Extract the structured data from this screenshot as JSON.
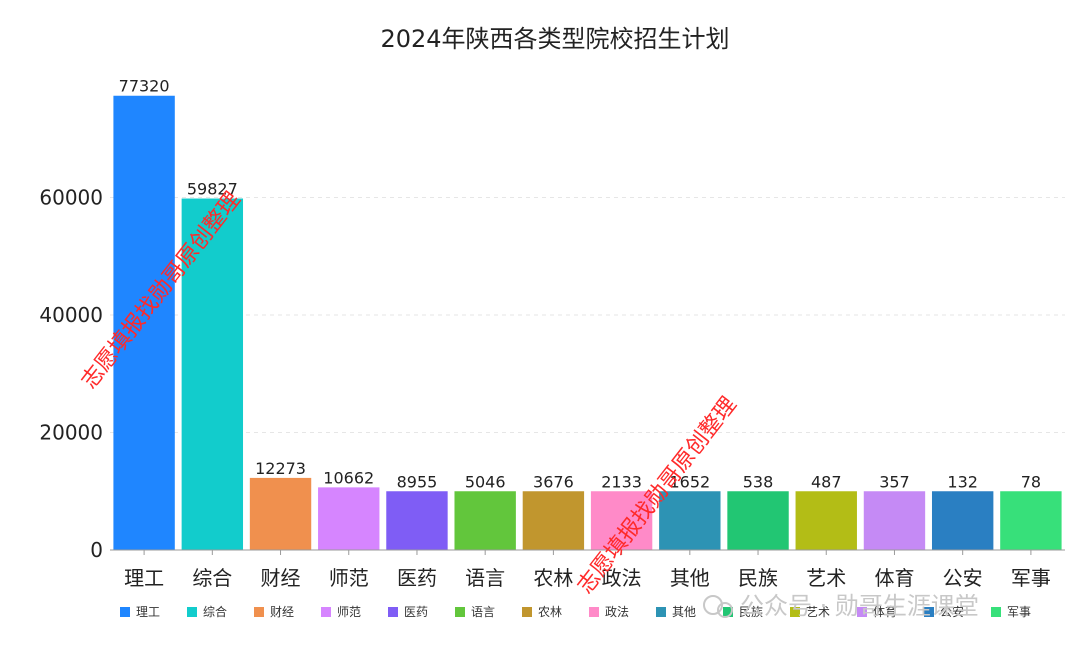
{
  "chart_data": {
    "type": "bar",
    "title": "2024年陕西各类型院校招生计划",
    "categories": [
      "理工",
      "综合",
      "财经",
      "师范",
      "医药",
      "语言",
      "农林",
      "政法",
      "其他",
      "民族",
      "艺术",
      "体育",
      "公安",
      "军事"
    ],
    "values": [
      77320,
      59827,
      12273,
      10662,
      8955,
      5046,
      3676,
      2133,
      1652,
      538,
      487,
      357,
      132,
      78
    ],
    "display_values": [
      77320,
      59827,
      12273,
      10662,
      10000,
      10000,
      10000,
      10000,
      10000,
      10000,
      10000,
      10000,
      10000,
      10000
    ],
    "colors": [
      "#1f86ff",
      "#12cccc",
      "#f0904e",
      "#d685ff",
      "#7f5df5",
      "#62c63c",
      "#c1962e",
      "#ff8ac8",
      "#2d93b4",
      "#22c673",
      "#b3bd16",
      "#c58af5",
      "#2a7fc2",
      "#37e07a"
    ],
    "ylim": [
      0,
      80000
    ],
    "yticks": [
      0,
      20000,
      40000,
      60000
    ],
    "xlabel": "",
    "ylabel": "",
    "legend": [
      "理工",
      "综合",
      "财经",
      "师范",
      "医药",
      "语言",
      "农林",
      "政法",
      "其他",
      "民族",
      "艺术",
      "体育",
      "公安",
      "军事"
    ],
    "legend_position": "bottom"
  },
  "watermarks": {
    "text_red": "志愿填报找勋哥原创整理",
    "text_gray": "公众号 · 勋哥生涯课堂"
  }
}
